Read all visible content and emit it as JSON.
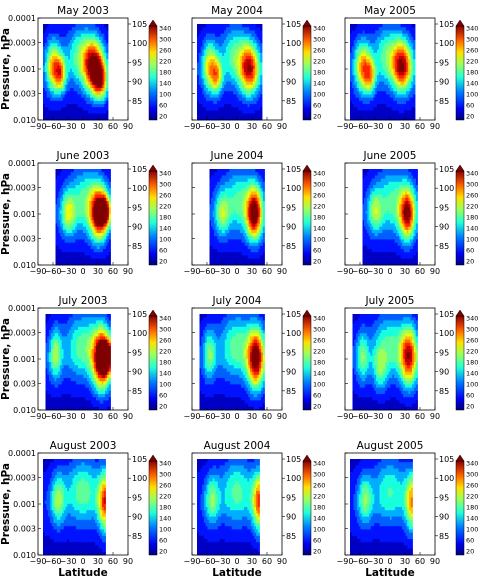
{
  "chart_data": {
    "type": "heatmap",
    "description_free": true,
    "xlabel": "Latitude",
    "ylabel": "Pressure, hPa",
    "x_ticks": [
      "−90",
      "−60",
      "−30",
      "0",
      "30",
      "60",
      "90"
    ],
    "x_tick_values": [
      -90,
      -60,
      -30,
      0,
      30,
      60,
      90
    ],
    "y_ticks": [
      "0.0001",
      "0.0003",
      "0.001",
      "0.003",
      "0.010"
    ],
    "y_tick_values": [
      0.0001,
      0.0003,
      0.001,
      0.003,
      0.01
    ],
    "y_scale": "log",
    "colorbar_labels": [
      "340",
      "300",
      "260",
      "220",
      "180",
      "140",
      "100",
      "60",
      "20"
    ],
    "colorbar_values": [
      340,
      300,
      260,
      220,
      180,
      140,
      100,
      60,
      20
    ],
    "altitude_labels": [
      "105",
      "100",
      "95",
      "90",
      "85"
    ],
    "altitude_values": [
      105,
      100,
      95,
      90,
      85
    ],
    "colors": [
      "#00007f",
      "#0000c4",
      "#0012ff",
      "#0060ff",
      "#00aeff",
      "#18ffde",
      "#5cff9a",
      "#a0ff56",
      "#e4ff12",
      "#ffbd00",
      "#ff7000",
      "#ff2200",
      "#c40000",
      "#7f0000"
    ],
    "panels": [
      {
        "title": "May 2003",
        "lat_range": [
          -80,
          50
        ],
        "blobs": [
          [
            -60,
            -3.05,
            10,
            0.35,
            0.5
          ],
          [
            -45,
            -2.9,
            8,
            0.25,
            0.48
          ],
          [
            22,
            -3.05,
            14,
            0.35,
            0.78
          ],
          [
            35,
            -2.75,
            10,
            0.25,
            0.5
          ],
          [
            -5,
            -3.3,
            20,
            0.4,
            0.3
          ]
        ]
      },
      {
        "title": "May 2004",
        "lat_range": [
          -80,
          50
        ],
        "blobs": [
          [
            -55,
            -3.05,
            10,
            0.35,
            0.45
          ],
          [
            -40,
            -2.85,
            8,
            0.25,
            0.42
          ],
          [
            25,
            -3.0,
            14,
            0.35,
            0.68
          ],
          [
            -5,
            -3.3,
            20,
            0.4,
            0.28
          ]
        ]
      },
      {
        "title": "May 2005",
        "lat_range": [
          -80,
          50
        ],
        "blobs": [
          [
            -55,
            -3.05,
            11,
            0.35,
            0.52
          ],
          [
            -40,
            -2.85,
            8,
            0.25,
            0.4
          ],
          [
            25,
            -3.05,
            14,
            0.35,
            0.7
          ],
          [
            -5,
            -3.3,
            20,
            0.4,
            0.3
          ]
        ]
      },
      {
        "title": "June 2003",
        "lat_range": [
          -55,
          55
        ],
        "blobs": [
          [
            -30,
            -3.0,
            10,
            0.3,
            0.35
          ],
          [
            32,
            -3.0,
            12,
            0.35,
            0.8
          ],
          [
            45,
            -3.05,
            7,
            0.2,
            0.55
          ],
          [
            5,
            -3.3,
            25,
            0.45,
            0.3
          ]
        ]
      },
      {
        "title": "June 2004",
        "lat_range": [
          -55,
          55
        ],
        "blobs": [
          [
            -30,
            -3.0,
            10,
            0.3,
            0.3
          ],
          [
            35,
            -3.0,
            11,
            0.35,
            0.78
          ],
          [
            5,
            -3.3,
            25,
            0.45,
            0.28
          ]
        ]
      },
      {
        "title": "June 2005",
        "lat_range": [
          -55,
          55
        ],
        "blobs": [
          [
            -30,
            -3.05,
            10,
            0.3,
            0.3
          ],
          [
            35,
            -3.0,
            11,
            0.35,
            0.7
          ],
          [
            5,
            -3.3,
            25,
            0.45,
            0.28
          ]
        ]
      },
      {
        "title": "July 2003",
        "lat_range": [
          -75,
          55
        ],
        "blobs": [
          [
            -55,
            -3.1,
            9,
            0.35,
            0.35
          ],
          [
            38,
            -3.0,
            13,
            0.4,
            0.92
          ],
          [
            48,
            -3.05,
            8,
            0.2,
            0.6
          ],
          [
            0,
            -3.3,
            25,
            0.45,
            0.3
          ]
        ]
      },
      {
        "title": "July 2004",
        "lat_range": [
          -75,
          55
        ],
        "blobs": [
          [
            -55,
            -3.1,
            9,
            0.35,
            0.3
          ],
          [
            38,
            -3.0,
            12,
            0.4,
            0.8
          ],
          [
            0,
            -3.3,
            25,
            0.45,
            0.3
          ]
        ]
      },
      {
        "title": "July 2005",
        "lat_range": [
          -75,
          55
        ],
        "blobs": [
          [
            -55,
            -3.05,
            9,
            0.35,
            0.3
          ],
          [
            -20,
            -2.8,
            10,
            0.3,
            0.25
          ],
          [
            38,
            -3.05,
            12,
            0.4,
            0.68
          ],
          [
            0,
            -3.3,
            25,
            0.45,
            0.28
          ]
        ]
      },
      {
        "title": "August 2003",
        "lat_range": [
          -80,
          45
        ],
        "blobs": [
          [
            -50,
            -3.1,
            10,
            0.35,
            0.33
          ],
          [
            45,
            -3.05,
            10,
            0.4,
            0.62
          ],
          [
            0,
            -3.3,
            25,
            0.45,
            0.3
          ]
        ]
      },
      {
        "title": "August 2004",
        "lat_range": [
          -80,
          45
        ],
        "blobs": [
          [
            -50,
            -3.1,
            10,
            0.35,
            0.3
          ],
          [
            45,
            -3.05,
            10,
            0.4,
            0.58
          ],
          [
            0,
            -3.3,
            25,
            0.45,
            0.28
          ]
        ]
      },
      {
        "title": "August 2005",
        "lat_range": [
          -80,
          45
        ],
        "blobs": [
          [
            -50,
            -3.1,
            10,
            0.35,
            0.3
          ],
          [
            45,
            -3.05,
            10,
            0.4,
            0.5
          ],
          [
            0,
            -3.3,
            25,
            0.45,
            0.26
          ]
        ]
      }
    ]
  }
}
